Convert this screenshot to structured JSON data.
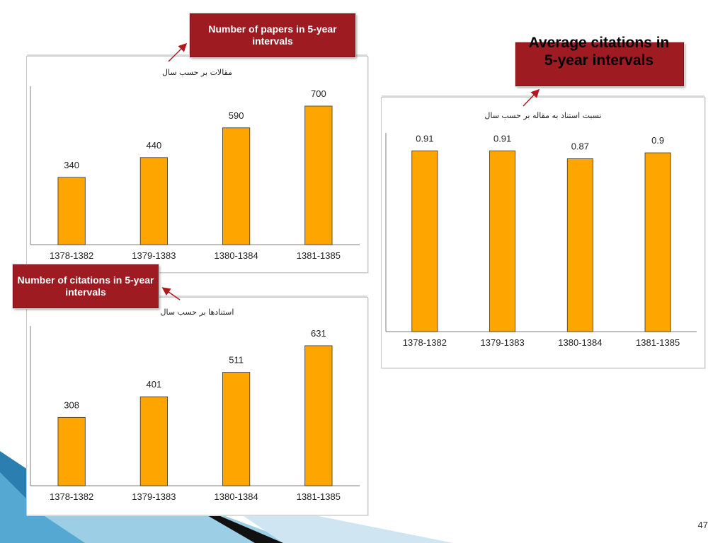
{
  "chart_data": [
    {
      "type": "bar",
      "title": "مقالات بر حسب سال",
      "categories": [
        "1378-1382",
        "1379-1383",
        "1380-1384",
        "1381-1385"
      ],
      "values": [
        340,
        440,
        590,
        700
      ],
      "ylim": [
        0,
        800
      ],
      "xlabel": "",
      "ylabel": "",
      "grid": false,
      "bar_color": "#FFA500"
    },
    {
      "type": "bar",
      "title": "استنادها بر حسب سال",
      "categories": [
        "1378-1382",
        "1379-1383",
        "1380-1384",
        "1381-1385"
      ],
      "values": [
        308,
        401,
        511,
        631
      ],
      "ylim": [
        0,
        720
      ],
      "xlabel": "",
      "ylabel": "",
      "grid": false,
      "bar_color": "#FFA500"
    },
    {
      "type": "bar",
      "title": "نسبت استناد به مقاله بر حسب سال",
      "categories": [
        "1378-1382",
        "1379-1383",
        "1380-1384",
        "1381-1385"
      ],
      "values": [
        0.91,
        0.91,
        0.87,
        0.9
      ],
      "ylim": [
        0,
        1.0
      ],
      "xlabel": "",
      "ylabel": "",
      "grid": false,
      "bar_color": "#FFA500"
    }
  ],
  "callouts": {
    "papers": "Number of papers in 5-year intervals",
    "citations": "Number of citations in 5-year intervals",
    "average": "Average citations in 5-year intervals"
  },
  "page_number": "47",
  "colors": {
    "callout_fill": "#9E1B22",
    "bar": "#FFA500"
  }
}
